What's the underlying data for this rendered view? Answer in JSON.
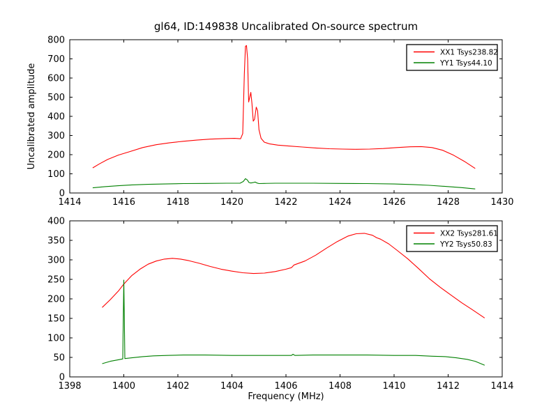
{
  "figure": {
    "background": "#ffffff",
    "frame_color": "#000000",
    "accent_red": "#ff0000",
    "accent_green": "#008000"
  },
  "chart_data": [
    {
      "type": "line",
      "title": "gl64, ID:149838 Uncalibrated On-source spectrum",
      "xlabel": "",
      "ylabel": "Uncalibrated amplitude",
      "xlim": [
        1414,
        1430
      ],
      "ylim": [
        0,
        800
      ],
      "xticks": [
        1414,
        1416,
        1418,
        1420,
        1422,
        1424,
        1426,
        1428,
        1430
      ],
      "yticks": [
        0,
        100,
        200,
        300,
        400,
        500,
        600,
        700,
        800
      ],
      "grid": false,
      "legend_position": "upper right",
      "series": [
        {
          "name": "XX1 Tsys238.82",
          "color": "#ff0000",
          "points": [
            [
              1414.85,
              131
            ],
            [
              1415.1,
              152
            ],
            [
              1415.4,
              175
            ],
            [
              1415.8,
              198
            ],
            [
              1416.2,
              215
            ],
            [
              1416.7,
              237
            ],
            [
              1417.2,
              252
            ],
            [
              1417.7,
              262
            ],
            [
              1418.2,
              270
            ],
            [
              1418.7,
              276
            ],
            [
              1419.2,
              281
            ],
            [
              1419.7,
              284
            ],
            [
              1420.1,
              285
            ],
            [
              1420.32,
              283
            ],
            [
              1420.4,
              310
            ],
            [
              1420.46,
              620
            ],
            [
              1420.5,
              765
            ],
            [
              1420.54,
              770
            ],
            [
              1420.58,
              700
            ],
            [
              1420.62,
              475
            ],
            [
              1420.66,
              500
            ],
            [
              1420.7,
              525
            ],
            [
              1420.74,
              468
            ],
            [
              1420.79,
              375
            ],
            [
              1420.84,
              385
            ],
            [
              1420.9,
              448
            ],
            [
              1420.95,
              430
            ],
            [
              1421.0,
              330
            ],
            [
              1421.08,
              285
            ],
            [
              1421.2,
              265
            ],
            [
              1421.4,
              256
            ],
            [
              1421.7,
              250
            ],
            [
              1422.1,
              245
            ],
            [
              1422.6,
              240
            ],
            [
              1423.1,
              235
            ],
            [
              1423.6,
              231
            ],
            [
              1424.1,
              229
            ],
            [
              1424.6,
              228
            ],
            [
              1425.1,
              229
            ],
            [
              1425.6,
              232
            ],
            [
              1426.1,
              237
            ],
            [
              1426.6,
              241
            ],
            [
              1427.0,
              242
            ],
            [
              1427.4,
              237
            ],
            [
              1427.8,
              223
            ],
            [
              1428.2,
              197
            ],
            [
              1428.6,
              165
            ],
            [
              1429.0,
              128
            ]
          ]
        },
        {
          "name": "YY1 Tsys44.10",
          "color": "#008000",
          "points": [
            [
              1414.85,
              27
            ],
            [
              1415.3,
              33
            ],
            [
              1415.8,
              38
            ],
            [
              1416.3,
              42
            ],
            [
              1416.9,
              45
            ],
            [
              1417.5,
              47
            ],
            [
              1418.2,
              49
            ],
            [
              1419.0,
              50
            ],
            [
              1419.8,
              51
            ],
            [
              1420.3,
              51
            ],
            [
              1420.42,
              60
            ],
            [
              1420.5,
              75
            ],
            [
              1420.57,
              68
            ],
            [
              1420.63,
              55
            ],
            [
              1420.7,
              52
            ],
            [
              1420.78,
              54
            ],
            [
              1420.86,
              57
            ],
            [
              1420.93,
              52
            ],
            [
              1421.0,
              49
            ],
            [
              1421.2,
              50
            ],
            [
              1421.6,
              51
            ],
            [
              1422.2,
              51
            ],
            [
              1423.0,
              51
            ],
            [
              1424.0,
              50
            ],
            [
              1425.0,
              49
            ],
            [
              1426.0,
              47
            ],
            [
              1426.7,
              44
            ],
            [
              1427.3,
              40
            ],
            [
              1427.9,
              34
            ],
            [
              1428.5,
              28
            ],
            [
              1429.0,
              21
            ]
          ]
        }
      ]
    },
    {
      "type": "line",
      "title": "",
      "xlabel": "Frequency (MHz)",
      "ylabel": "",
      "xlim": [
        1398,
        1414
      ],
      "ylim": [
        0,
        400
      ],
      "xticks": [
        1398,
        1400,
        1402,
        1404,
        1406,
        1408,
        1410,
        1412,
        1414
      ],
      "yticks": [
        0,
        50,
        100,
        150,
        200,
        250,
        300,
        350,
        400
      ],
      "grid": false,
      "legend_position": "upper right",
      "series": [
        {
          "name": "XX2 Tsys281.61",
          "color": "#ff0000",
          "points": [
            [
              1399.2,
              178
            ],
            [
              1399.5,
              198
            ],
            [
              1399.8,
              220
            ],
            [
              1400.0,
              238
            ],
            [
              1400.3,
              260
            ],
            [
              1400.6,
              276
            ],
            [
              1400.9,
              289
            ],
            [
              1401.2,
              297
            ],
            [
              1401.5,
              302
            ],
            [
              1401.8,
              304
            ],
            [
              1402.1,
              302
            ],
            [
              1402.4,
              298
            ],
            [
              1402.8,
              291
            ],
            [
              1403.2,
              283
            ],
            [
              1403.6,
              276
            ],
            [
              1404.0,
              271
            ],
            [
              1404.4,
              267
            ],
            [
              1404.8,
              265
            ],
            [
              1405.2,
              266
            ],
            [
              1405.6,
              270
            ],
            [
              1406.0,
              276
            ],
            [
              1406.2,
              280
            ],
            [
              1406.3,
              287
            ],
            [
              1406.7,
              297
            ],
            [
              1407.1,
              312
            ],
            [
              1407.5,
              330
            ],
            [
              1407.9,
              347
            ],
            [
              1408.3,
              361
            ],
            [
              1408.6,
              367
            ],
            [
              1408.9,
              368
            ],
            [
              1409.2,
              363
            ],
            [
              1409.35,
              357
            ],
            [
              1409.5,
              353
            ],
            [
              1409.8,
              341
            ],
            [
              1410.1,
              325
            ],
            [
              1410.5,
              303
            ],
            [
              1410.9,
              278
            ],
            [
              1411.3,
              252
            ],
            [
              1411.7,
              230
            ],
            [
              1412.1,
              210
            ],
            [
              1412.5,
              190
            ],
            [
              1412.9,
              172
            ],
            [
              1413.35,
              151
            ]
          ]
        },
        {
          "name": "YY2 Tsys50.83",
          "color": "#008000",
          "points": [
            [
              1399.2,
              34
            ],
            [
              1399.5,
              40
            ],
            [
              1399.8,
              44
            ],
            [
              1399.96,
              46
            ],
            [
              1400.0,
              248
            ],
            [
              1400.04,
              47
            ],
            [
              1400.3,
              49
            ],
            [
              1400.7,
              52
            ],
            [
              1401.1,
              54
            ],
            [
              1401.6,
              55
            ],
            [
              1402.2,
              56
            ],
            [
              1403.0,
              56
            ],
            [
              1404.0,
              55
            ],
            [
              1405.0,
              55
            ],
            [
              1406.0,
              55
            ],
            [
              1406.2,
              55
            ],
            [
              1406.26,
              58
            ],
            [
              1406.33,
              55
            ],
            [
              1407.0,
              56
            ],
            [
              1408.0,
              56
            ],
            [
              1409.0,
              56
            ],
            [
              1410.0,
              55
            ],
            [
              1410.8,
              55
            ],
            [
              1411.4,
              53
            ],
            [
              1411.9,
              52
            ],
            [
              1412.3,
              49
            ],
            [
              1412.7,
              45
            ],
            [
              1413.0,
              40
            ],
            [
              1413.35,
              30
            ]
          ]
        }
      ]
    }
  ]
}
